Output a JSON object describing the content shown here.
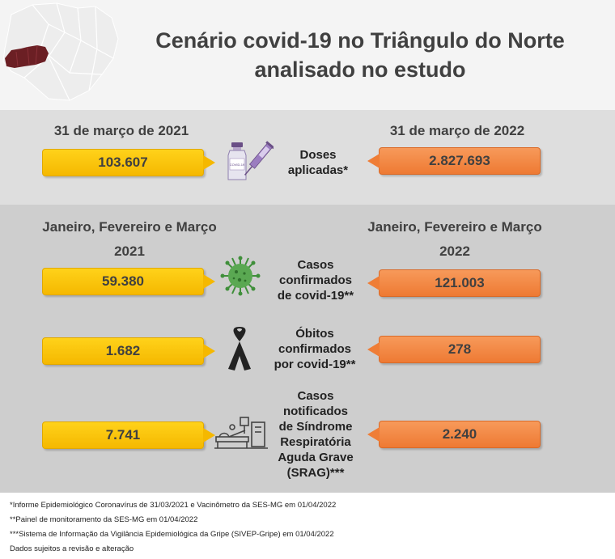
{
  "title": {
    "line1": "Cenário covid-19 no Triângulo do Norte",
    "line2": "analisado no estudo"
  },
  "doses": {
    "left_header": "31 de março de 2021",
    "right_header": "31 de março de 2022",
    "left_value": "103.607",
    "right_value": "2.827.693",
    "label_line1": "Doses",
    "label_line2": "aplicadas*"
  },
  "period": {
    "left_line1": "Janeiro, Fevereiro e Março",
    "left_line2": "2021",
    "right_line1": "Janeiro, Fevereiro e Março",
    "right_line2": "2022"
  },
  "rows": {
    "cases": {
      "label_line1": "Casos",
      "label_line2": "confirmados",
      "label_line3": "de covid-19**",
      "left_value": "59.380",
      "right_value": "121.003"
    },
    "deaths": {
      "label_line1": "Óbitos",
      "label_line2": "confirmados",
      "label_line3": "por covid-19**",
      "left_value": "1.682",
      "right_value": "278"
    },
    "srag": {
      "label_line1": "Casos",
      "label_line2": "notificados",
      "label_line3": "de Síndrome",
      "label_line4": "Respiratória",
      "label_line5": "Aguda Grave",
      "label_line6": "(SRAG)***",
      "left_value": "7.741",
      "right_value": "2.240"
    }
  },
  "footnotes": [
    "*Informe Epidemiológico Coronavírus de 31/03/2021 e Vacinômetro da SES-MG em 01/04/2022",
    "**Painel de monitoramento da SES-MG em 01/04/2022",
    "***Sistema de Informação da Vigilância Epidemiológica da Gripe (SIVEP-Gripe) em 01/04/2022",
    "Dados sujeitos a revisão e alteração"
  ],
  "vaccine_vial_text": "COVID-19",
  "colors": {
    "yellow": "#f5b800",
    "orange": "#ee7a33",
    "band_light": "#dedede",
    "band_dark": "#cecece",
    "map_highlight": "#6b1f24"
  },
  "icons": {
    "map": "minas-gerais-map-icon",
    "vaccine": "vaccine-icon",
    "virus": "virus-icon",
    "ribbon": "mourning-ribbon-icon",
    "hospital": "hospital-bed-icon"
  }
}
